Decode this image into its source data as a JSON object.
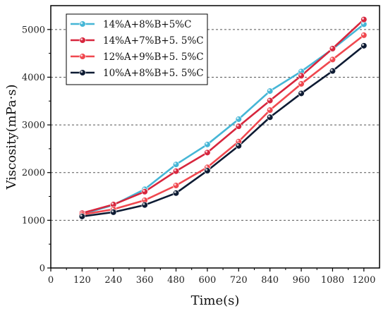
{
  "chart_data": {
    "type": "line",
    "title": "",
    "xlabel": "Time(s)",
    "ylabel": "Viscosity(mPa·s)",
    "xlim": [
      0,
      1260
    ],
    "ylim": [
      0,
      5500
    ],
    "xticks": [
      0,
      120,
      240,
      360,
      480,
      600,
      720,
      840,
      960,
      1080,
      1200
    ],
    "yticks": [
      0,
      1000,
      2000,
      3000,
      4000,
      5000
    ],
    "grid": "horizontal dashed at major y ticks",
    "legend_position": "top-left",
    "x": [
      120,
      240,
      360,
      480,
      600,
      720,
      840,
      960,
      1080,
      1200
    ],
    "series": [
      {
        "name": "14%A+8%B+5%C",
        "color": "#45b6d6",
        "values": [
          1130,
          1320,
          1650,
          2170,
          2590,
          3120,
          3710,
          4120,
          4590,
          5110
        ]
      },
      {
        "name": "14%A+7%B+5. 5%C",
        "color": "#d7263d",
        "values": [
          1150,
          1330,
          1600,
          2030,
          2420,
          2970,
          3510,
          4030,
          4600,
          5210
        ]
      },
      {
        "name": "12%A+9%B+5. 5%C",
        "color": "#f0484f",
        "values": [
          1120,
          1230,
          1420,
          1730,
          2110,
          2650,
          3310,
          3860,
          4370,
          4880
        ]
      },
      {
        "name": "10%A+8%B+5. 5%C",
        "color": "#0d1b33",
        "values": [
          1080,
          1170,
          1320,
          1570,
          2040,
          2560,
          3160,
          3660,
          4130,
          4660
        ]
      }
    ]
  }
}
